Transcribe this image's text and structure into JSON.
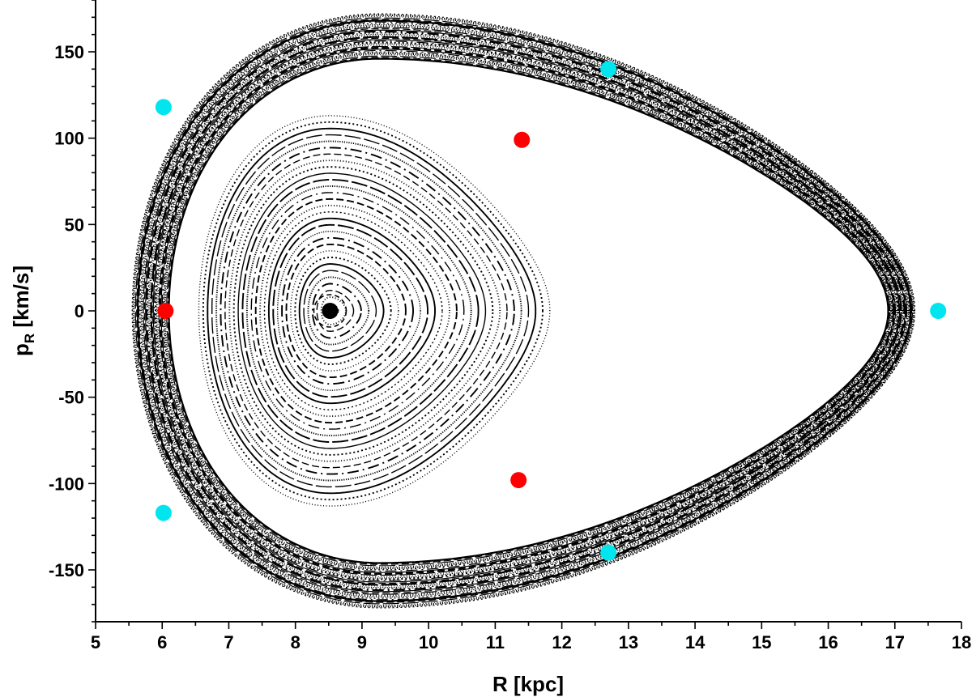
{
  "chart_data": {
    "type": "scatter",
    "title": "",
    "xlabel": "R [kpc]",
    "ylabel": "p",
    "ylabel_subscript": "R",
    "ylabel_units": " [km/s]",
    "xlim": [
      5,
      18
    ],
    "ylim": [
      -180,
      180
    ],
    "x_ticks": [
      5,
      6,
      7,
      8,
      9,
      10,
      11,
      12,
      13,
      14,
      15,
      16,
      17,
      18
    ],
    "y_ticks": [
      -150,
      -100,
      -50,
      0,
      50,
      100,
      150
    ],
    "x_minor_step": 0.5,
    "y_minor_step": 10,
    "grid": false,
    "invariant_curves": {
      "description_color": "#000000",
      "central_family": {
        "center": [
          8.52,
          0
        ],
        "R_min_outer": 6.55,
        "R_max_outer": 11.82,
        "p_max_outer": 113,
        "count": 30
      },
      "outer_family": {
        "R_min_inner": 6.1,
        "R_max_inner": 16.9,
        "p_max_inner": 146,
        "R_min_outer": 5.55,
        "R_max_outer": 17.3,
        "p_max_outer": 172,
        "count": 34
      }
    },
    "series": [
      {
        "color": "#000000",
        "marker": "filled-circle",
        "points": [
          [
            8.52,
            0
          ]
        ]
      },
      {
        "color": "#ff0000",
        "marker": "filled-circle",
        "points": [
          [
            6.05,
            0
          ],
          [
            11.4,
            99
          ],
          [
            11.35,
            -98
          ]
        ]
      },
      {
        "color": "#00e5ee",
        "marker": "filled-circle",
        "points": [
          [
            6.02,
            118
          ],
          [
            6.02,
            -117
          ],
          [
            12.7,
            140
          ],
          [
            12.7,
            -140
          ],
          [
            17.65,
            0
          ]
        ]
      }
    ]
  }
}
